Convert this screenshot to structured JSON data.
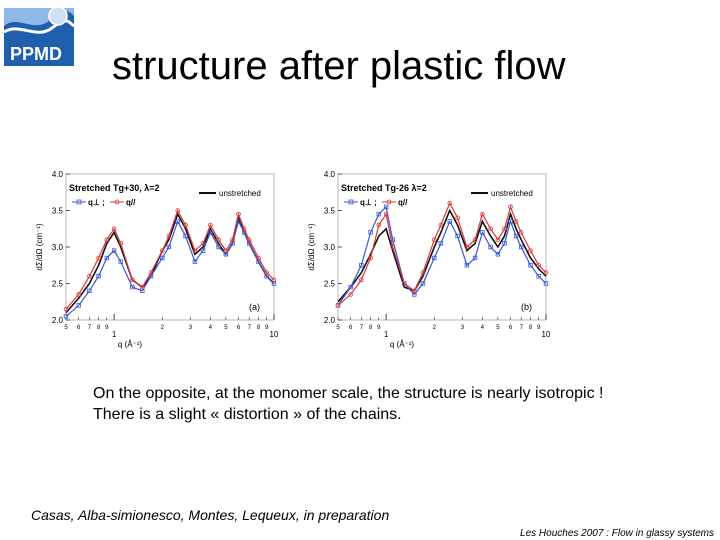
{
  "logo": {
    "text": "PPMD"
  },
  "title": "structure after plastic flow",
  "caption_lines": [
    "On the opposite, at the monomer scale, the structure is nearly isotropic !",
    "There is a slight « distortion » of the chains."
  ],
  "citation": "Casas, Alba-simionesco, Montes, Lequeux, in preparation",
  "footer": "Les Houches 2007 : Flow in glassy systems",
  "colors": {
    "unstretched": "#111111",
    "perp": "#3a55d6",
    "par": "#d93a3a",
    "logo_blue": "#1f5fae"
  },
  "chart_data": [
    {
      "type": "line",
      "panel_label": "(a)",
      "legend": {
        "heading": "Stretched  Tg+30,  λ=2",
        "unstretched": "unstretched",
        "q_perp": "q⊥ ;",
        "q_par": "q//"
      },
      "ylabel": "dΣ/dΩ (cm⁻¹)",
      "xlabel": "q (Å⁻¹)",
      "xscale": "log",
      "xlim": [
        0.5,
        10
      ],
      "ylim": [
        2.0,
        4.0
      ],
      "yticks": [
        "2.0",
        "2.5",
        "3.0",
        "3.5",
        "4.0"
      ],
      "xticks_major": [
        [
          "1",
          1
        ],
        [
          "10",
          10
        ]
      ],
      "xticks_minor": [
        [
          "5",
          0.5
        ],
        [
          "6",
          0.6
        ],
        [
          "7",
          0.7
        ],
        [
          "8",
          0.8
        ],
        [
          "9",
          0.9
        ],
        [
          "2",
          2
        ],
        [
          "3",
          3
        ],
        [
          "4",
          4
        ],
        [
          "5",
          5
        ],
        [
          "6",
          6
        ],
        [
          "7",
          7
        ],
        [
          "8",
          8
        ],
        [
          "9",
          9
        ]
      ],
      "series": [
        {
          "key": "unstretched",
          "x": [
            0.5,
            0.6,
            0.7,
            0.8,
            0.9,
            1.0,
            1.1,
            1.3,
            1.5,
            1.7,
            2.0,
            2.2,
            2.5,
            2.8,
            3.2,
            3.6,
            4.0,
            4.5,
            5.0,
            5.5,
            6.0,
            6.5,
            7.0,
            8.0,
            9.0,
            10.0
          ],
          "y": [
            2.1,
            2.3,
            2.5,
            2.75,
            3.05,
            3.2,
            3.0,
            2.55,
            2.45,
            2.6,
            2.95,
            3.1,
            3.45,
            3.25,
            2.9,
            3.0,
            3.25,
            3.05,
            2.9,
            3.05,
            3.4,
            3.2,
            3.05,
            2.8,
            2.6,
            2.5
          ]
        },
        {
          "key": "q_perp",
          "x": [
            0.5,
            0.6,
            0.7,
            0.8,
            0.9,
            1.0,
            1.1,
            1.3,
            1.5,
            1.7,
            2.0,
            2.2,
            2.5,
            2.8,
            3.2,
            3.6,
            4.0,
            4.5,
            5.0,
            5.5,
            6.0,
            6.5,
            7.0,
            8.0,
            9.0,
            10.0
          ],
          "y": [
            2.05,
            2.2,
            2.4,
            2.6,
            2.85,
            2.95,
            2.8,
            2.45,
            2.4,
            2.6,
            2.85,
            3.0,
            3.35,
            3.15,
            2.8,
            2.95,
            3.2,
            3.0,
            2.9,
            3.05,
            3.35,
            3.2,
            3.05,
            2.8,
            2.6,
            2.5
          ]
        },
        {
          "key": "q_par",
          "x": [
            0.5,
            0.6,
            0.7,
            0.8,
            0.9,
            1.0,
            1.1,
            1.3,
            1.5,
            1.7,
            2.0,
            2.2,
            2.5,
            2.8,
            3.2,
            3.6,
            4.0,
            4.5,
            5.0,
            5.5,
            6.0,
            6.5,
            7.0,
            8.0,
            9.0,
            10.0
          ],
          "y": [
            2.15,
            2.35,
            2.6,
            2.85,
            3.1,
            3.25,
            3.05,
            2.55,
            2.45,
            2.65,
            2.95,
            3.15,
            3.5,
            3.3,
            2.95,
            3.05,
            3.3,
            3.1,
            2.95,
            3.1,
            3.45,
            3.25,
            3.1,
            2.85,
            2.65,
            2.55
          ]
        }
      ]
    },
    {
      "type": "line",
      "panel_label": "(b)",
      "legend": {
        "heading": "Stretched  Tg-26  λ=2",
        "unstretched": "unstretched",
        "q_perp": "q⊥ ;",
        "q_par": "q//"
      },
      "ylabel": "dΣ/dΩ (cm⁻¹)",
      "xlabel": "q (Å⁻¹)",
      "xscale": "log",
      "xlim": [
        0.5,
        10
      ],
      "ylim": [
        2.0,
        4.0
      ],
      "yticks": [
        "2.0",
        "2.5",
        "3.0",
        "3.5",
        "4.0"
      ],
      "xticks_major": [
        [
          "1",
          1
        ],
        [
          "10",
          10
        ]
      ],
      "xticks_minor": [
        [
          "5",
          0.5
        ],
        [
          "6",
          0.6
        ],
        [
          "7",
          0.7
        ],
        [
          "8",
          0.8
        ],
        [
          "9",
          0.9
        ],
        [
          "2",
          2
        ],
        [
          "3",
          3
        ],
        [
          "4",
          4
        ],
        [
          "5",
          5
        ],
        [
          "6",
          6
        ],
        [
          "7",
          7
        ],
        [
          "8",
          8
        ],
        [
          "9",
          9
        ]
      ],
      "series": [
        {
          "key": "unstretched",
          "x": [
            0.5,
            0.6,
            0.7,
            0.8,
            0.9,
            1.0,
            1.1,
            1.3,
            1.5,
            1.7,
            2.0,
            2.2,
            2.5,
            2.8,
            3.2,
            3.6,
            4.0,
            4.5,
            5.0,
            5.5,
            6.0,
            6.5,
            7.0,
            8.0,
            9.0,
            10.0
          ],
          "y": [
            2.25,
            2.45,
            2.65,
            2.9,
            3.15,
            3.25,
            2.95,
            2.45,
            2.4,
            2.6,
            3.0,
            3.2,
            3.5,
            3.3,
            2.95,
            3.05,
            3.35,
            3.15,
            3.0,
            3.15,
            3.45,
            3.25,
            3.1,
            2.85,
            2.7,
            2.6
          ]
        },
        {
          "key": "q_perp",
          "x": [
            0.5,
            0.6,
            0.7,
            0.8,
            0.9,
            1.0,
            1.1,
            1.3,
            1.5,
            1.7,
            2.0,
            2.2,
            2.5,
            2.8,
            3.2,
            3.6,
            4.0,
            4.5,
            5.0,
            5.5,
            6.0,
            6.5,
            7.0,
            8.0,
            9.0,
            10.0
          ],
          "y": [
            2.2,
            2.45,
            2.75,
            3.2,
            3.45,
            3.55,
            3.1,
            2.5,
            2.35,
            2.5,
            2.85,
            3.05,
            3.35,
            3.15,
            2.75,
            2.85,
            3.2,
            3.0,
            2.9,
            3.05,
            3.35,
            3.15,
            3.0,
            2.75,
            2.6,
            2.5
          ]
        },
        {
          "key": "q_par",
          "x": [
            0.5,
            0.6,
            0.7,
            0.8,
            0.9,
            1.0,
            1.1,
            1.3,
            1.5,
            1.7,
            2.0,
            2.2,
            2.5,
            2.8,
            3.2,
            3.6,
            4.0,
            4.5,
            5.0,
            5.5,
            6.0,
            6.5,
            7.0,
            8.0,
            9.0,
            10.0
          ],
          "y": [
            2.2,
            2.35,
            2.55,
            2.85,
            3.3,
            3.45,
            3.0,
            2.5,
            2.4,
            2.65,
            3.1,
            3.3,
            3.6,
            3.4,
            3.0,
            3.1,
            3.45,
            3.25,
            3.1,
            3.25,
            3.55,
            3.35,
            3.2,
            2.95,
            2.75,
            2.65
          ]
        }
      ]
    }
  ]
}
